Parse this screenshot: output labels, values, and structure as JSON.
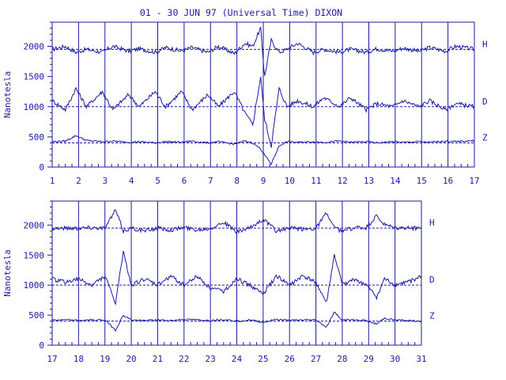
{
  "title": "01 - 30 JUN 97 (Universal Time) DIXON",
  "colors": {
    "trace": "#1a1aa6",
    "background": "#ffffff"
  },
  "chart_data": [
    {
      "type": "line",
      "ylabel": "Nanotesla",
      "ylim": [
        0,
        2400
      ],
      "yticks": [
        0,
        500,
        1000,
        1500,
        2000
      ],
      "xlim": [
        1,
        17
      ],
      "xticks": [
        1,
        2,
        3,
        4,
        5,
        6,
        7,
        8,
        9,
        10,
        11,
        12,
        13,
        14,
        15,
        16,
        17
      ],
      "grid": "vertical day lines",
      "baselines": [
        1950,
        1000,
        400
      ],
      "series": [
        {
          "name": "H",
          "baseline": 1950,
          "x": [
            1,
            1.5,
            1.9,
            2.3,
            2.9,
            3.3,
            3.9,
            4.3,
            4.9,
            5.3,
            5.9,
            6.3,
            6.9,
            7.3,
            7.9,
            8.3,
            8.6,
            8.9,
            9.05,
            9.3,
            9.6,
            9.9,
            10.3,
            10.9,
            11.3,
            11.9,
            12.3,
            12.9,
            13.3,
            13.9,
            14.3,
            14.9,
            15.3,
            15.9,
            16.3,
            17
          ],
          "values": [
            1950,
            2000,
            1900,
            1950,
            1900,
            2000,
            1920,
            1960,
            1900,
            1980,
            1920,
            1980,
            1900,
            2000,
            1880,
            2050,
            2000,
            2300,
            1500,
            2100,
            1900,
            1950,
            2050,
            1900,
            1950,
            1900,
            1950,
            1900,
            1960,
            1920,
            1970,
            1920,
            1980,
            1920,
            2000,
            1950
          ]
        },
        {
          "name": "D",
          "baseline": 1000,
          "x": [
            1,
            1.5,
            1.9,
            2.3,
            2.9,
            3.3,
            3.9,
            4.3,
            4.9,
            5.3,
            5.9,
            6.3,
            6.9,
            7.3,
            7.9,
            8.3,
            8.6,
            8.9,
            9.05,
            9.3,
            9.6,
            9.9,
            10.3,
            10.9,
            11.3,
            11.9,
            12.3,
            12.9,
            13.3,
            13.9,
            14.3,
            14.9,
            15.3,
            15.9,
            16.3,
            17
          ],
          "values": [
            1100,
            950,
            1300,
            1000,
            1250,
            950,
            1200,
            1000,
            1250,
            1000,
            1250,
            950,
            1200,
            1000,
            1250,
            900,
            700,
            1500,
            800,
            350,
            1300,
            1000,
            1100,
            1000,
            1150,
            1000,
            1150,
            950,
            1050,
            1000,
            1100,
            1000,
            1100,
            950,
            1050,
            1000
          ]
        },
        {
          "name": "Z",
          "baseline": 400,
          "x": [
            1,
            1.5,
            1.9,
            2.3,
            2.9,
            3.3,
            3.9,
            4.3,
            4.9,
            5.3,
            5.9,
            6.3,
            6.9,
            7.3,
            7.9,
            8.3,
            8.6,
            8.9,
            9.05,
            9.3,
            9.6,
            9.9,
            10.3,
            10.9,
            11.3,
            11.9,
            12.3,
            12.9,
            13.3,
            13.9,
            14.3,
            14.9,
            15.3,
            15.9,
            16.3,
            17
          ],
          "values": [
            420,
            430,
            520,
            440,
            420,
            430,
            410,
            420,
            400,
            420,
            410,
            430,
            400,
            420,
            380,
            430,
            400,
            300,
            200,
            50,
            350,
            420,
            410,
            420,
            410,
            430,
            410,
            420,
            400,
            420,
            410,
            420,
            410,
            430,
            420,
            440
          ]
        }
      ]
    },
    {
      "type": "line",
      "ylabel": "Nanotesla",
      "ylim": [
        0,
        2400
      ],
      "yticks": [
        0,
        500,
        1000,
        1500,
        2000
      ],
      "xlim": [
        17,
        31
      ],
      "xticks": [
        17,
        18,
        19,
        20,
        21,
        22,
        23,
        24,
        25,
        26,
        27,
        28,
        29,
        30,
        31
      ],
      "grid": "vertical day lines",
      "baselines": [
        1950,
        1000,
        400
      ],
      "series": [
        {
          "name": "H",
          "baseline": 1950,
          "x": [
            17,
            17.5,
            18,
            18.5,
            19,
            19.4,
            19.7,
            20,
            20.5,
            21,
            21.5,
            22,
            22.5,
            23,
            23.5,
            24,
            24.5,
            25,
            25.5,
            26,
            26.5,
            27,
            27.4,
            27.7,
            28,
            28.5,
            28.9,
            29.3,
            29.6,
            30,
            30.5,
            31
          ],
          "values": [
            1950,
            1950,
            1950,
            1960,
            1950,
            2250,
            1900,
            1950,
            1900,
            1950,
            1920,
            1960,
            1920,
            1950,
            2050,
            1880,
            1950,
            2100,
            1900,
            1950,
            1930,
            1950,
            2200,
            1950,
            1900,
            1960,
            1950,
            2150,
            2000,
            1950,
            1950,
            1950
          ]
        },
        {
          "name": "D",
          "baseline": 1000,
          "x": [
            17,
            17.5,
            18,
            18.5,
            19,
            19.4,
            19.7,
            20,
            20.5,
            21,
            21.5,
            22,
            22.5,
            23,
            23.5,
            24,
            24.5,
            25,
            25.5,
            26,
            26.5,
            27,
            27.4,
            27.7,
            28,
            28.5,
            28.9,
            29.3,
            29.6,
            30,
            30.5,
            31
          ],
          "values": [
            1100,
            1050,
            1100,
            1000,
            1150,
            700,
            1550,
            1000,
            1100,
            1000,
            1150,
            1000,
            1150,
            950,
            900,
            1100,
            1000,
            850,
            1150,
            1000,
            1150,
            1050,
            700,
            1500,
            1000,
            1100,
            1000,
            800,
            1100,
            1000,
            1050,
            1150
          ]
        },
        {
          "name": "Z",
          "baseline": 400,
          "x": [
            17,
            17.5,
            18,
            18.5,
            19,
            19.4,
            19.7,
            20,
            20.5,
            21,
            21.5,
            22,
            22.5,
            23,
            23.5,
            24,
            24.5,
            25,
            25.5,
            26,
            26.5,
            27,
            27.4,
            27.7,
            28,
            28.5,
            28.9,
            29.3,
            29.6,
            30,
            30.5,
            31
          ],
          "values": [
            420,
            420,
            410,
            420,
            420,
            250,
            500,
            420,
            410,
            420,
            410,
            430,
            420,
            410,
            430,
            400,
            420,
            380,
            430,
            410,
            420,
            420,
            300,
            550,
            420,
            420,
            410,
            350,
            450,
            420,
            410,
            400
          ]
        }
      ]
    }
  ]
}
